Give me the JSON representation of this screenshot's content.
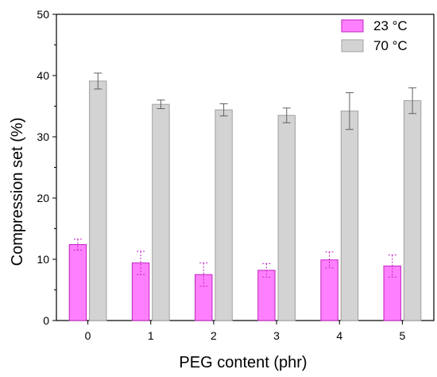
{
  "chart_data": {
    "type": "bar",
    "xlabel": "PEG content (phr)",
    "ylabel": "Compression set (%)",
    "ylim": [
      0,
      50
    ],
    "yticks": [
      0,
      10,
      20,
      30,
      40,
      50
    ],
    "categories": [
      "0",
      "1",
      "2",
      "3",
      "4",
      "5"
    ],
    "grid": false,
    "legend_position": "top-right",
    "series": [
      {
        "name": "23 °C",
        "color": "#ff80ff",
        "edge_color": "#c020c0",
        "error_color": "#c020c0",
        "values": [
          12.4,
          9.4,
          7.5,
          8.2,
          9.9,
          8.9
        ],
        "errors": [
          0.9,
          1.9,
          1.9,
          1.1,
          1.3,
          1.8
        ]
      },
      {
        "name": "70 °C",
        "color": "#d3d3d3",
        "edge_color": "#a0a0a0",
        "error_color": "#606060",
        "values": [
          39.1,
          35.3,
          34.4,
          33.5,
          34.2,
          35.9
        ],
        "errors": [
          1.3,
          0.7,
          1.0,
          1.2,
          3.0,
          2.1
        ]
      }
    ]
  }
}
